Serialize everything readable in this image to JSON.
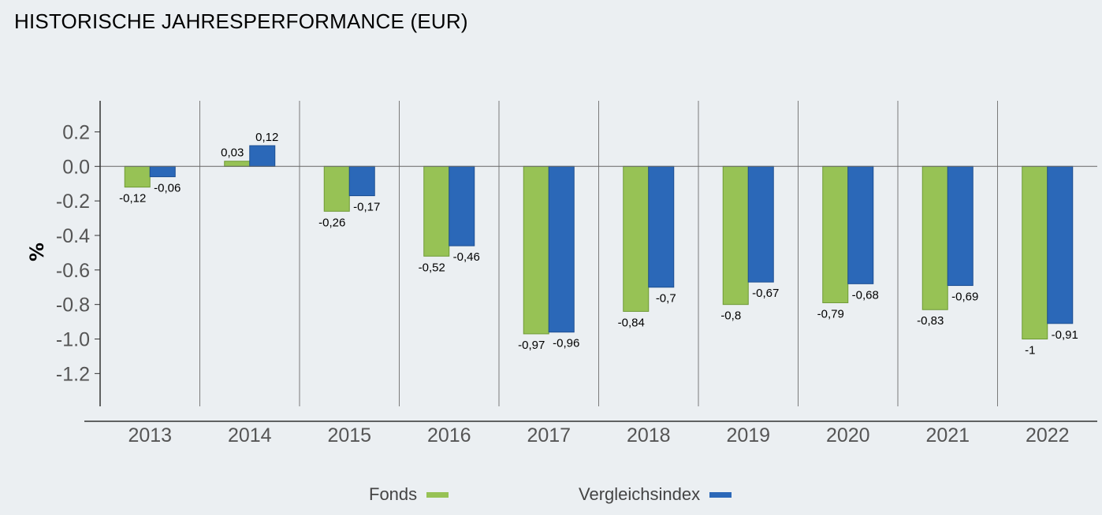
{
  "title": "HISTORISCHE JAHRESPERFORMANCE (EUR)",
  "colors": {
    "fonds": "#97c255",
    "index": "#2b68b8",
    "axis": "#333333",
    "tick": "#555555",
    "grid": "#7a7a7a"
  },
  "chart_data": {
    "type": "bar",
    "title": "HISTORISCHE JAHRESPERFORMANCE (EUR)",
    "xlabel": "",
    "ylabel": "%",
    "ylim": [
      -1.39,
      0.38
    ],
    "yticks": [
      0.2,
      0.0,
      -0.2,
      -0.4,
      -0.6,
      -0.8,
      -1.0,
      -1.2
    ],
    "ytick_labels": [
      "0.2",
      "0.0",
      "-0.2",
      "-0.4",
      "-0.6",
      "-0.8",
      "-1.0",
      "-1.2"
    ],
    "grid": "vertical category separators",
    "legend_placement": "bottom-center",
    "categories": [
      "2013",
      "2014",
      "2015",
      "2016",
      "2017",
      "2018",
      "2019",
      "2020",
      "2021",
      "2022"
    ],
    "series": [
      {
        "name": "Fonds",
        "values": [
          -0.12,
          0.03,
          -0.26,
          -0.52,
          -0.97,
          -0.84,
          -0.8,
          -0.79,
          -0.83,
          -1
        ],
        "labels": [
          "-0,12",
          "0,03",
          "-0,26",
          "-0,52",
          "-0,97",
          "-0,84",
          "-0,8",
          "-0,79",
          "-0,83",
          "-1"
        ]
      },
      {
        "name": "Vergleichsindex",
        "values": [
          -0.06,
          0.12,
          -0.17,
          -0.46,
          -0.96,
          -0.7,
          -0.67,
          -0.68,
          -0.69,
          -0.91
        ],
        "labels": [
          "-0,06",
          "0,12",
          "-0,17",
          "-0,46",
          "-0,96",
          "-0,7",
          "-0,67",
          "-0,68",
          "-0,69",
          "-0,91"
        ]
      }
    ]
  }
}
